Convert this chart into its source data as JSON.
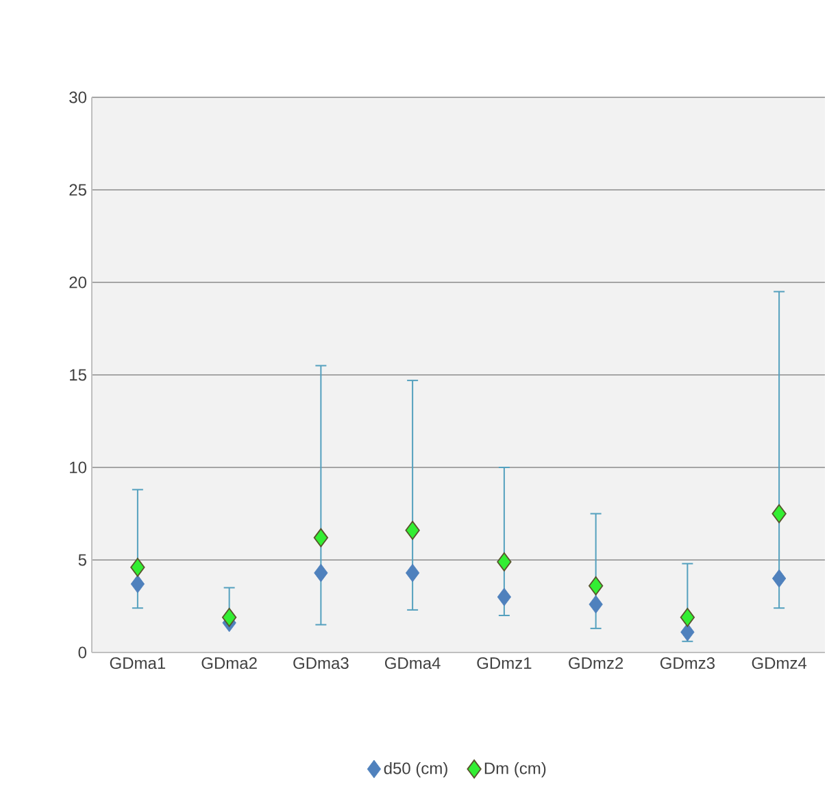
{
  "chart_data": {
    "type": "scatter",
    "categories": [
      "GDma1",
      "GDma2",
      "GDma3",
      "GDma4",
      "GDmz1",
      "GDmz2",
      "GDmz3",
      "GDmz4"
    ],
    "series": [
      {
        "name": "d50 (cm)",
        "color": "#4f81bd",
        "values": [
          3.7,
          1.6,
          4.3,
          4.3,
          3.0,
          2.6,
          1.1,
          4.0
        ],
        "errors": [
          [
            2.4,
            8.8
          ],
          [
            1.6,
            3.5
          ],
          [
            1.5,
            15.5
          ],
          [
            2.3,
            14.7
          ],
          [
            2.0,
            10.0
          ],
          [
            1.3,
            7.5
          ],
          [
            0.6,
            4.8
          ],
          [
            2.4,
            19.5
          ]
        ]
      },
      {
        "name": "Dm (cm)",
        "color": "#33ee33",
        "values": [
          4.6,
          1.9,
          6.2,
          6.6,
          4.9,
          3.6,
          1.9,
          7.5
        ]
      }
    ],
    "ylim": [
      0,
      30
    ],
    "yticks": [
      0,
      5,
      10,
      15,
      20,
      25,
      30
    ],
    "grid": "y",
    "legend": "bottom",
    "marker": "diamond"
  }
}
